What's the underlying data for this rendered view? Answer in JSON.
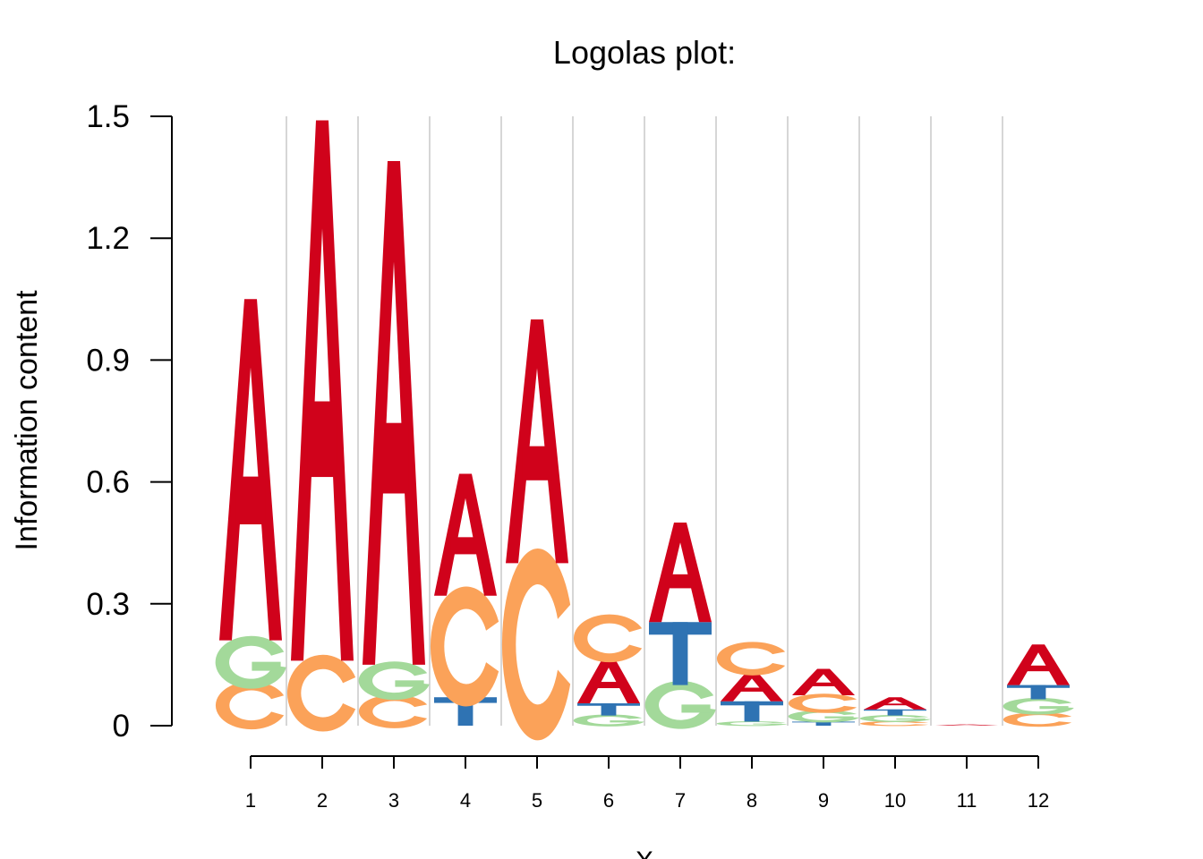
{
  "chart_data": {
    "type": "sequence-logo",
    "title": "Logolas plot:",
    "xlabel": "X",
    "ylabel": "Information content",
    "ylim": [
      0,
      1.5
    ],
    "yticks": [
      "0",
      "0.3",
      "0.6",
      "0.9",
      "1.2",
      "1.5"
    ],
    "ytick_values": [
      0,
      0.3,
      0.6,
      0.9,
      1.2,
      1.5
    ],
    "grid": "vertical",
    "colors": {
      "A": "#d0021b",
      "C": "#fba259",
      "G": "#a3d99a",
      "T": "#2f73b3"
    },
    "positions": [
      {
        "label": "1",
        "letters": [
          [
            "C",
            0.1
          ],
          [
            "G",
            0.11
          ],
          [
            "A",
            0.84
          ]
        ]
      },
      {
        "label": "2",
        "letters": [
          [
            "C",
            0.16
          ],
          [
            "A",
            1.33
          ]
        ]
      },
      {
        "label": "3",
        "letters": [
          [
            "C",
            0.07
          ],
          [
            "G",
            0.08
          ],
          [
            "A",
            1.24
          ]
        ]
      },
      {
        "label": "4",
        "letters": [
          [
            "T",
            0.07
          ],
          [
            "C",
            0.25
          ],
          [
            "A",
            0.3
          ]
        ]
      },
      {
        "label": "5",
        "letters": [
          [
            "C",
            0.4
          ],
          [
            "A",
            0.6
          ]
        ]
      },
      {
        "label": "6",
        "letters": [
          [
            "G",
            0.025
          ],
          [
            "T",
            0.03
          ],
          [
            "A",
            0.11
          ],
          [
            "C",
            0.1
          ]
        ]
      },
      {
        "label": "7",
        "letters": [
          [
            "G",
            0.1
          ],
          [
            "T",
            0.155
          ],
          [
            "A",
            0.245
          ]
        ]
      },
      {
        "label": "8",
        "letters": [
          [
            "G",
            0.01
          ],
          [
            "T",
            0.05
          ],
          [
            "A",
            0.07
          ],
          [
            "C",
            0.07
          ]
        ]
      },
      {
        "label": "9",
        "letters": [
          [
            "T",
            0.01
          ],
          [
            "G",
            0.025
          ],
          [
            "C",
            0.04
          ],
          [
            "A",
            0.065
          ]
        ]
      },
      {
        "label": "10",
        "letters": [
          [
            "C",
            0.01
          ],
          [
            "G",
            0.015
          ],
          [
            "T",
            0.015
          ],
          [
            "A",
            0.03
          ]
        ]
      },
      {
        "label": "11",
        "letters": [
          [
            "A",
            0.003
          ]
        ]
      },
      {
        "label": "12",
        "letters": [
          [
            "C",
            0.03
          ],
          [
            "G",
            0.035
          ],
          [
            "T",
            0.035
          ],
          [
            "A",
            0.1
          ]
        ]
      }
    ]
  }
}
